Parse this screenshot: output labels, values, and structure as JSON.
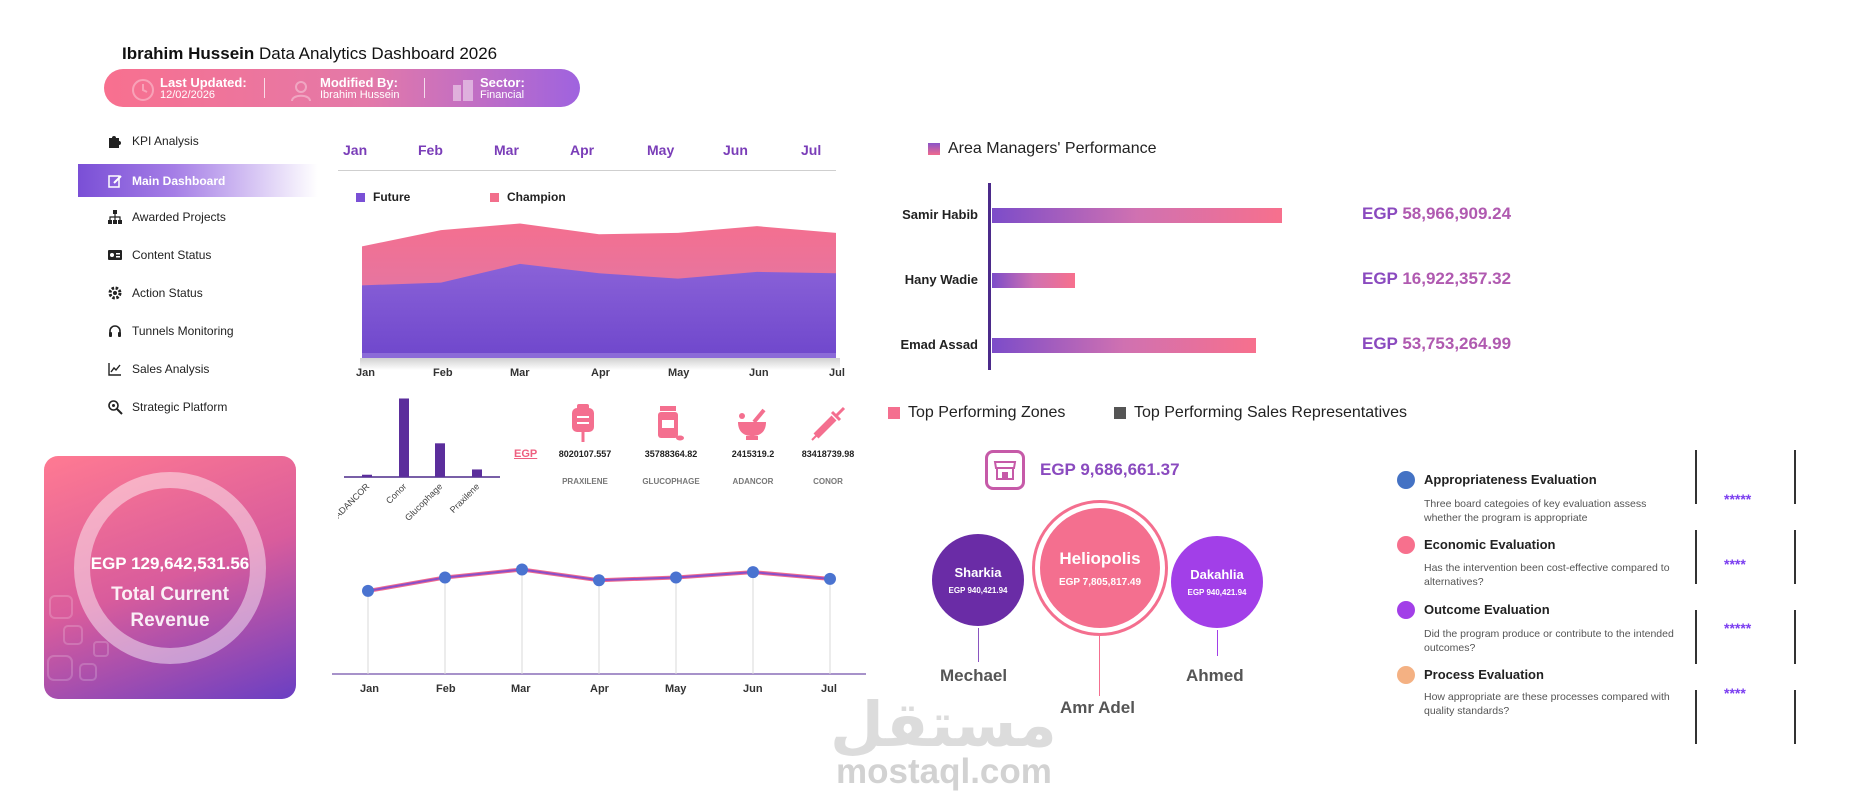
{
  "header": {
    "title_bold": "Ibrahim Hussein",
    "title_rest": " Data Analytics Dashboard 2026",
    "last_updated_label": "Last Updated:",
    "last_updated_value": "12/02/2026",
    "modified_by_label": "Modified By:",
    "modified_by_value": "Ibrahim Hussein",
    "sector_label": "Sector:",
    "sector_value": "Financial"
  },
  "sidebar": {
    "items": [
      {
        "label": "KPI Analysis",
        "icon": "puzzle-icon"
      },
      {
        "label": "Main Dashboard",
        "icon": "edit-icon"
      },
      {
        "label": "Awarded Projects",
        "icon": "hierarchy-icon"
      },
      {
        "label": "Content Status",
        "icon": "id-card-icon"
      },
      {
        "label": "Action Status",
        "icon": "gear-icon"
      },
      {
        "label": "Tunnels Monitoring",
        "icon": "headset-icon"
      },
      {
        "label": "Sales Analysis",
        "icon": "line-chart-icon"
      },
      {
        "label": "Strategic Platform",
        "icon": "search-gear-icon"
      }
    ],
    "active_index": 1
  },
  "revenue": {
    "amount": "EGP 129,642,531.56",
    "label_line1": "Total Current",
    "label_line2": "Revenue"
  },
  "months_header": [
    "Jan",
    "Feb",
    "Mar",
    "Apr",
    "May",
    "Jun",
    "Jul"
  ],
  "area_chart": {
    "legend": [
      "Future",
      "Champion"
    ],
    "x_labels": [
      "Jan",
      "Feb",
      "Mar",
      "Apr",
      "May",
      "Jun",
      "Jul"
    ]
  },
  "products": {
    "currency_link": "EGP",
    "items": [
      {
        "name": "PRAXILENE",
        "value": "8020107.557",
        "icon": "iv-bag-icon"
      },
      {
        "name": "GLUCOPHAGE",
        "value": "35788364.82",
        "icon": "pill-bottle-icon"
      },
      {
        "name": "ADANCOR",
        "value": "2415319.2",
        "icon": "mortar-pestle-icon"
      },
      {
        "name": "CONOR",
        "value": "83418739.98",
        "icon": "syringe-icon"
      }
    ]
  },
  "line_chart": {
    "x_labels": [
      "Jan",
      "Feb",
      "Mar",
      "Apr",
      "May",
      "Jun",
      "Jul"
    ]
  },
  "managers": {
    "title": "Area Managers' Performance",
    "rows": [
      {
        "name": "Samir Habib",
        "egp": "EGP",
        "amount": "58,966,909.24"
      },
      {
        "name": "Hany Wadie",
        "egp": "EGP",
        "amount": "16,922,357.32"
      },
      {
        "name": "Emad Assad",
        "egp": "EGP",
        "amount": "53,753,264.99"
      }
    ]
  },
  "zones": {
    "title_zones": "Top Performing Zones",
    "title_reps": "Top Performing Sales Representatives",
    "total": "EGP 9,686,661.37",
    "bubbles": [
      {
        "name": "Sharkia",
        "value": "EGP 940,421.94",
        "rep": "Mechael"
      },
      {
        "name": "Heliopolis",
        "value": "EGP 7,805,817.49",
        "rep": "Amr Adel"
      },
      {
        "name": "Dakahlia",
        "value": "EGP 940,421.94",
        "rep": "Ahmed"
      }
    ]
  },
  "evaluations": [
    {
      "title": "Appropriateness Evaluation",
      "desc": "Three board categoies of key evaluation assess whether the program is appropriate",
      "stars": "*****",
      "color": "#4472c4"
    },
    {
      "title": "Economic Evaluation",
      "desc": "Has the intervention been cost-effective compared to alternatives?",
      "stars": "****",
      "color": "#f7708d"
    },
    {
      "title": "Outcome Evaluation",
      "desc": "Did the program produce or contribute to the intended outcomes?",
      "stars": "*****",
      "color": "#a23fe8"
    },
    {
      "title": "Process Evaluation",
      "desc": "How appropriate are these processes compared with quality standards?",
      "stars": "****",
      "color": "#f4b183"
    }
  ],
  "watermark": {
    "arabic": "مستقل",
    "latin": "mostaql.com"
  },
  "chart_data": [
    {
      "type": "area",
      "title": "",
      "categories": [
        "Jan",
        "Feb",
        "Mar",
        "Apr",
        "May",
        "Jun",
        "Jul"
      ],
      "series": [
        {
          "name": "Future",
          "values": [
            54,
            56,
            70,
            63,
            59,
            64,
            63
          ]
        },
        {
          "name": "Champion",
          "values": [
            83,
            95,
            100,
            92,
            93,
            98,
            93
          ]
        }
      ],
      "ylim": [
        0,
        110
      ]
    },
    {
      "type": "bar",
      "title": "",
      "categories": [
        "ADANCOR",
        "Conor",
        "Glucophage",
        "Praxilene"
      ],
      "values": [
        2415319.2,
        83418739.98,
        35788364.82,
        8020107.557
      ],
      "ylim": [
        0,
        85000000
      ]
    },
    {
      "type": "line",
      "title": "",
      "categories": [
        "Jan",
        "Feb",
        "Mar",
        "Apr",
        "May",
        "Jun",
        "Jul"
      ],
      "series": [
        {
          "name": "Sales",
          "values": [
            62,
            72,
            78,
            70,
            72,
            76,
            71
          ]
        }
      ],
      "ylim": [
        0,
        100
      ]
    },
    {
      "type": "bar",
      "title": "Area Managers' Performance",
      "categories": [
        "Samir Habib",
        "Hany Wadie",
        "Emad Assad"
      ],
      "values": [
        58966909.24,
        16922357.32,
        53753264.99
      ],
      "orientation": "horizontal"
    }
  ]
}
